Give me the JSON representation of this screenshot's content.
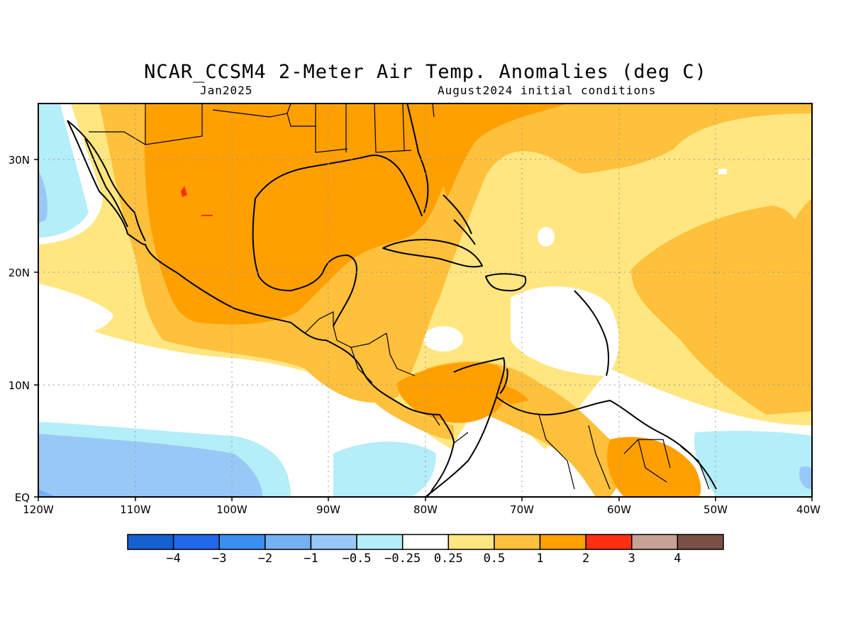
{
  "title": "NCAR_CCSM4 2-Meter Air Temp. Anomalies (deg C)",
  "subtitle_left": "Jan2025",
  "subtitle_right": "August2024 initial conditions",
  "axes": {
    "lon_labels": [
      "120W",
      "110W",
      "100W",
      "90W",
      "80W",
      "70W",
      "60W",
      "50W",
      "40W"
    ],
    "lat_labels": [
      "EQ",
      "10N",
      "20N",
      "30N"
    ],
    "lon_range": [
      -120,
      -40
    ],
    "lat_range": [
      0,
      35
    ],
    "grid": "dotted"
  },
  "colorbar": {
    "colors": [
      "#1560d0",
      "#2068e8",
      "#3a8ff0",
      "#74b1f2",
      "#98c8f6",
      "#b4eef8",
      "#ffffff",
      "#ffe680",
      "#ffc03c",
      "#ffa000",
      "#ff3010",
      "#c8a096",
      "#7a5044"
    ],
    "labels": [
      "-4",
      "-3",
      "-2",
      "-1",
      "-0.5",
      "-0.25",
      "0.25",
      "0.5",
      "1",
      "2",
      "3",
      "4"
    ]
  }
}
